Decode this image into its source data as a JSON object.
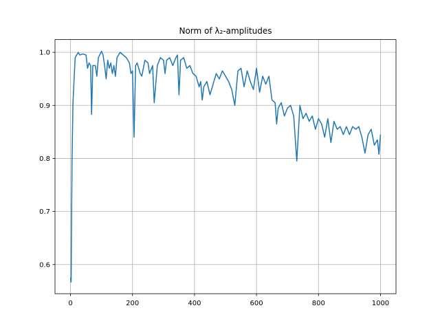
{
  "chart_data": {
    "type": "line",
    "title": "Norm of λ₂-amplitudes",
    "x": [
      0,
      2,
      5,
      8,
      15,
      20,
      25,
      30,
      40,
      50,
      55,
      60,
      65,
      68,
      72,
      80,
      85,
      90,
      100,
      105,
      110,
      115,
      120,
      125,
      130,
      135,
      140,
      145,
      150,
      160,
      170,
      180,
      190,
      195,
      200,
      205,
      210,
      215,
      225,
      230,
      240,
      250,
      255,
      265,
      270,
      280,
      290,
      300,
      305,
      310,
      320,
      330,
      340,
      345,
      350,
      355,
      365,
      375,
      385,
      395,
      405,
      415,
      420,
      425,
      430,
      440,
      450,
      460,
      470,
      480,
      490,
      500,
      510,
      520,
      530,
      540,
      550,
      560,
      570,
      580,
      590,
      600,
      610,
      620,
      630,
      640,
      650,
      660,
      665,
      670,
      680,
      690,
      700,
      710,
      720,
      730,
      740,
      750,
      760,
      770,
      780,
      790,
      800,
      810,
      820,
      830,
      840,
      850,
      860,
      870,
      880,
      890,
      900,
      910,
      920,
      930,
      940,
      950,
      960,
      970,
      980,
      990,
      995,
      1000
    ],
    "series": [
      {
        "color": "#1f77b4",
        "values": [
          0.575,
          0.567,
          0.8,
          0.905,
          0.99,
          0.995,
          1.0,
          0.995,
          0.997,
          0.995,
          0.97,
          0.98,
          0.975,
          0.883,
          0.975,
          0.975,
          0.955,
          0.99,
          1.002,
          0.995,
          0.975,
          0.95,
          0.985,
          0.97,
          0.98,
          0.96,
          0.975,
          0.955,
          0.99,
          1.0,
          0.995,
          0.99,
          0.98,
          0.96,
          0.965,
          0.84,
          0.975,
          0.98,
          0.96,
          0.955,
          0.985,
          0.98,
          0.96,
          0.975,
          0.905,
          0.975,
          0.99,
          0.985,
          0.96,
          0.985,
          0.99,
          0.975,
          0.99,
          0.995,
          0.92,
          0.985,
          0.99,
          0.97,
          0.975,
          0.96,
          0.955,
          0.935,
          0.945,
          0.91,
          0.935,
          0.945,
          0.92,
          0.94,
          0.96,
          0.95,
          0.965,
          0.955,
          0.945,
          0.93,
          0.9,
          0.965,
          0.97,
          0.935,
          0.965,
          0.945,
          0.93,
          0.97,
          0.925,
          0.955,
          0.94,
          0.955,
          0.91,
          0.905,
          0.865,
          0.895,
          0.905,
          0.88,
          0.895,
          0.9,
          0.88,
          0.795,
          0.9,
          0.875,
          0.885,
          0.87,
          0.88,
          0.855,
          0.875,
          0.865,
          0.84,
          0.875,
          0.83,
          0.87,
          0.855,
          0.86,
          0.845,
          0.86,
          0.845,
          0.86,
          0.855,
          0.86,
          0.84,
          0.81,
          0.845,
          0.855,
          0.825,
          0.835,
          0.808,
          0.845
        ]
      }
    ],
    "xlim": [
      -50,
      1050
    ],
    "ylim": [
      0.545,
      1.024
    ],
    "xticks": [
      0,
      200,
      400,
      600,
      800,
      1000
    ],
    "yticks": [
      0.6,
      0.7,
      0.8,
      0.9,
      {
        "value": 1,
        "label": "1.0"
      }
    ],
    "grid": true
  }
}
